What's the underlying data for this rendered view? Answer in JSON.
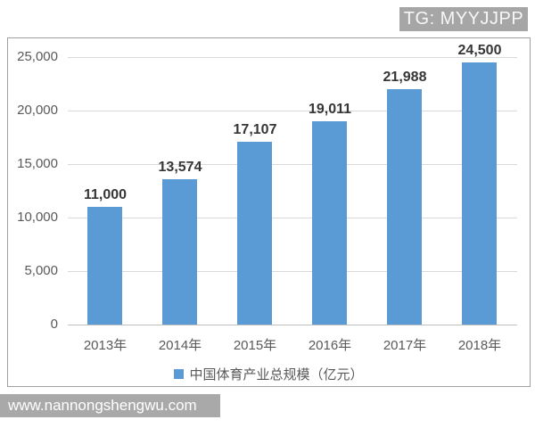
{
  "overlay": {
    "badge_text": "TG: MYYJJPP",
    "watermark_text": "www.nannongshengwu.com"
  },
  "chart_data": {
    "type": "bar",
    "categories": [
      "2013年",
      "2014年",
      "2015年",
      "2016年",
      "2017年",
      "2018年"
    ],
    "values": [
      11000,
      13574,
      17107,
      19011,
      21988,
      24500
    ],
    "value_labels": [
      "11,000",
      "13,574",
      "17,107",
      "19,011",
      "21,988",
      "24,500"
    ],
    "title": "",
    "xlabel": "",
    "ylabel": "",
    "ylim": [
      0,
      25000
    ],
    "yticks": [
      0,
      5000,
      10000,
      15000,
      20000,
      25000
    ],
    "ytick_labels": [
      "0",
      "5,000",
      "10,000",
      "15,000",
      "20,000",
      "25,000"
    ],
    "grid": true,
    "legend": {
      "position": "bottom",
      "entries": [
        "中国体育产业总规模（亿元）"
      ]
    },
    "bar_color": "#5B9BD5"
  },
  "colors": {
    "bar": "#5B9BD5",
    "gridline": "#d9d9d9",
    "axis_line": "#bfbfbf",
    "axis_text": "#595959",
    "value_text": "#363636",
    "badge_bg": "#a6a6a6",
    "watermark_bg": "#a9a9a9",
    "chart_border": "#a0a0a0"
  }
}
